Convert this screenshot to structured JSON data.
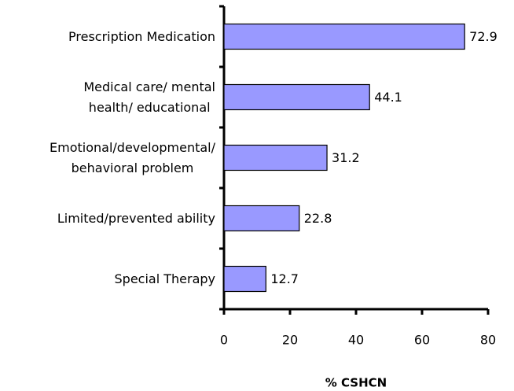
{
  "chart_data": {
    "type": "hbar",
    "categories": [
      "Prescription Medication",
      "Medical care/ mental\nhealth/ educational",
      "Emotional/developmental/\nbehavioral problem",
      "Limited/prevented ability",
      "Special Therapy"
    ],
    "values": [
      72.9,
      44.1,
      31.2,
      22.8,
      12.7
    ],
    "color": "#9999ff",
    "xlim": [
      0,
      80
    ],
    "xticks": [
      0,
      20,
      40,
      60,
      80
    ],
    "xlabel": "% CSHCN"
  }
}
